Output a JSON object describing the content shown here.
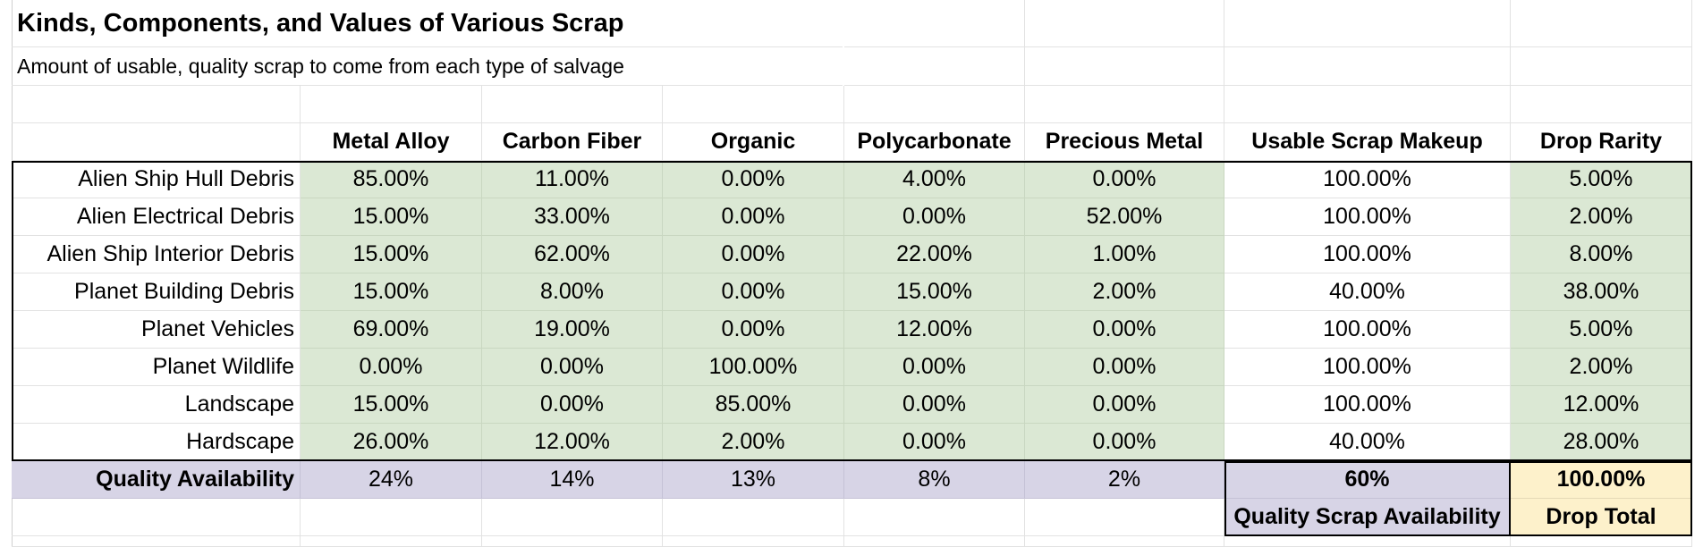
{
  "sheet": {
    "title": "Kinds, Components, and Values of Various Scrap",
    "subtitle": "Amount of usable, quality scrap to come from each type of salvage",
    "headers": [
      "Metal Alloy",
      "Carbon Fiber",
      "Organic",
      "Polycarbonate",
      "Precious Metal",
      "Usable Scrap Makeup",
      "Drop Rarity"
    ],
    "rows": [
      {
        "label": "Alien Ship Hull Debris",
        "values": [
          "85.00%",
          "11.00%",
          "0.00%",
          "4.00%",
          "0.00%",
          "100.00%",
          "5.00%"
        ]
      },
      {
        "label": "Alien Electrical Debris",
        "values": [
          "15.00%",
          "33.00%",
          "0.00%",
          "0.00%",
          "52.00%",
          "100.00%",
          "2.00%"
        ]
      },
      {
        "label": "Alien Ship Interior Debris",
        "values": [
          "15.00%",
          "62.00%",
          "0.00%",
          "22.00%",
          "1.00%",
          "100.00%",
          "8.00%"
        ]
      },
      {
        "label": "Planet Building Debris",
        "values": [
          "15.00%",
          "8.00%",
          "0.00%",
          "15.00%",
          "2.00%",
          "40.00%",
          "38.00%"
        ]
      },
      {
        "label": "Planet Vehicles",
        "values": [
          "69.00%",
          "19.00%",
          "0.00%",
          "12.00%",
          "0.00%",
          "100.00%",
          "5.00%"
        ]
      },
      {
        "label": "Planet Wildlife",
        "values": [
          "0.00%",
          "0.00%",
          "100.00%",
          "0.00%",
          "0.00%",
          "100.00%",
          "2.00%"
        ]
      },
      {
        "label": "Landscape",
        "values": [
          "15.00%",
          "0.00%",
          "85.00%",
          "0.00%",
          "0.00%",
          "100.00%",
          "12.00%"
        ]
      },
      {
        "label": "Hardscape",
        "values": [
          "26.00%",
          "12.00%",
          "2.00%",
          "0.00%",
          "0.00%",
          "40.00%",
          "28.00%"
        ]
      }
    ],
    "summary": {
      "label": "Quality Availability",
      "values": [
        "24%",
        "14%",
        "13%",
        "8%",
        "2%",
        "60%",
        "100.00%"
      ]
    },
    "footer": {
      "quality_scrap_label": "Quality Scrap Availability",
      "drop_total_label": "Drop Total"
    }
  }
}
